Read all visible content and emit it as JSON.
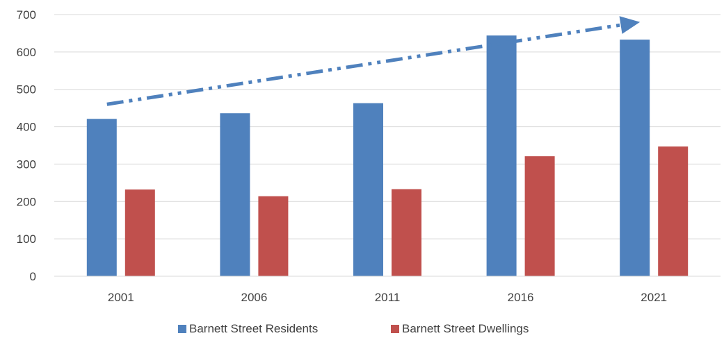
{
  "chart_data": {
    "type": "bar",
    "title": "",
    "xlabel": "",
    "ylabel": "",
    "categories": [
      "2001",
      "2006",
      "2011",
      "2016",
      "2021"
    ],
    "series": [
      {
        "name": "Barnett  Street Residents",
        "color": "#4F81BD",
        "values": [
          421,
          436,
          463,
          644,
          633
        ]
      },
      {
        "name": "Barnett  Street Dwellings",
        "color": "#C0504D",
        "values": [
          232,
          214,
          233,
          321,
          347
        ]
      }
    ],
    "ylim": [
      0,
      700
    ],
    "yticks": [
      "0",
      "100",
      "200",
      "300",
      "400",
      "500",
      "600",
      "700"
    ],
    "grid": true,
    "legend": "bottom",
    "annotation": {
      "type": "dash-dot-arrow",
      "color": "#4F81BD",
      "from": {
        "x": "2001",
        "y": 460
      },
      "to": {
        "x": "2021",
        "y": 680
      }
    }
  }
}
